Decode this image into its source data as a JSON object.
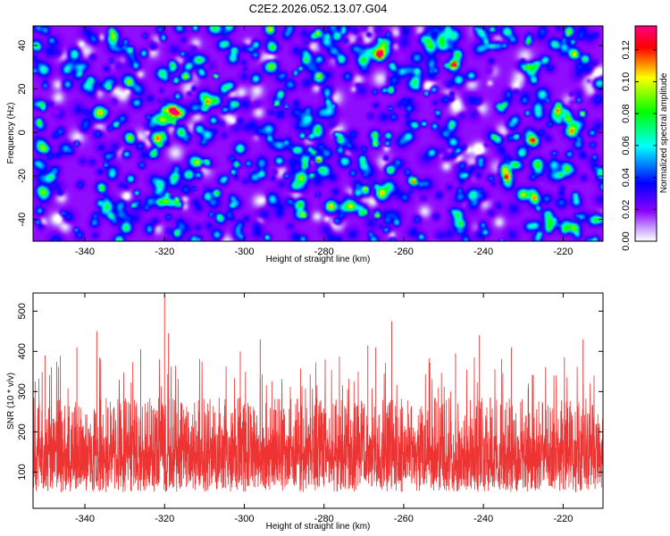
{
  "title": "C2E2.2026.052.13.07.G04",
  "chart_data": [
    {
      "type": "heatmap",
      "title": "C2E2.2026.052.13.07.G04",
      "xlabel": "Height of straight line (km)",
      "ylabel": "Frequency (Hz)",
      "xlim": [
        -353,
        -210
      ],
      "ylim": [
        -50,
        49
      ],
      "xticks": [
        -340,
        -320,
        -300,
        -280,
        -260,
        -240,
        -220
      ],
      "yticks": [
        -40,
        -20,
        0,
        20,
        40
      ],
      "colorbar": {
        "label": "Normalized spectral amplitude",
        "range": [
          0,
          0.135
        ],
        "ticks": [
          0.0,
          0.02,
          0.04,
          0.06,
          0.08,
          0.1,
          0.12
        ],
        "tick_labels": [
          "0.00",
          "0.02",
          "0.04",
          "0.06",
          "0.08",
          "0.10",
          "0.12"
        ],
        "colors": [
          "#ffffff",
          "#8a00ff",
          "#0000ff",
          "#00ffff",
          "#00ff00",
          "#ffff00",
          "#ff0000",
          "#ff0080"
        ]
      },
      "field_stats": {
        "background": 0.018,
        "blob_peak_typical": 0.05,
        "blob_peak_max": 0.125
      }
    },
    {
      "type": "line",
      "xlabel": "Height of straight line (km)",
      "ylabel": "SNR (10 * v/v)",
      "xlim": [
        -353,
        -210
      ],
      "ylim": [
        10,
        545
      ],
      "xticks": [
        -340,
        -320,
        -300,
        -280,
        -260,
        -240,
        -220
      ],
      "yticks": [
        100,
        200,
        300,
        400,
        500
      ],
      "series": [
        {
          "name": "SNR",
          "color": "#ee3333",
          "mean": 140,
          "typical_low": 50,
          "typical_high": 300,
          "peaks": [
            {
              "x": -350,
              "y": 390
            },
            {
              "x": -342,
              "y": 410
            },
            {
              "x": -337,
              "y": 450
            },
            {
              "x": -326,
              "y": 405
            },
            {
              "x": -320,
              "y": 540
            },
            {
              "x": -319,
              "y": 445
            },
            {
              "x": -301,
              "y": 400
            },
            {
              "x": -296,
              "y": 430
            },
            {
              "x": -269,
              "y": 415
            },
            {
              "x": -267,
              "y": 410
            },
            {
              "x": -263,
              "y": 475
            },
            {
              "x": -247,
              "y": 395
            },
            {
              "x": -241,
              "y": 440
            },
            {
              "x": -233,
              "y": 410
            },
            {
              "x": -215,
              "y": 430
            }
          ]
        }
      ]
    }
  ]
}
